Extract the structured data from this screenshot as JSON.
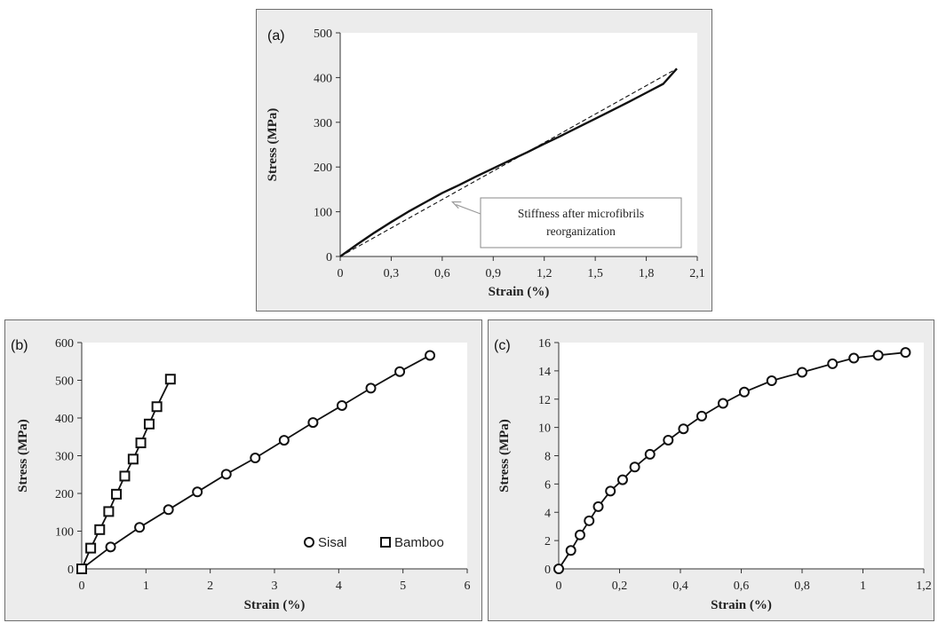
{
  "chart_data": [
    {
      "id": "a",
      "type": "line",
      "panel_label": "(a)",
      "xlabel": "Strain (%)",
      "ylabel": "Stress (MPa)",
      "xlim": [
        0,
        2.1
      ],
      "ylim": [
        0,
        500
      ],
      "xticks": [
        0,
        0.3,
        0.6,
        0.9,
        1.2,
        1.5,
        1.8,
        2.1
      ],
      "xtick_labels": [
        "0",
        "0,3",
        "0,6",
        "0,9",
        "1,2",
        "1,5",
        "1,8",
        "2,1"
      ],
      "yticks": [
        0,
        100,
        200,
        300,
        400,
        500
      ],
      "ytick_labels": [
        "0",
        "100",
        "200",
        "300",
        "400",
        "500"
      ],
      "grid": false,
      "series": [
        {
          "style": "solid",
          "x": [
            0,
            0.1,
            0.2,
            0.3,
            0.4,
            0.5,
            0.6,
            0.7,
            0.8,
            0.9,
            1.0,
            1.1,
            1.2,
            1.3,
            1.4,
            1.5,
            1.6,
            1.7,
            1.8,
            1.9,
            1.98
          ],
          "y": [
            0,
            27,
            53,
            77,
            100,
            121,
            142,
            160,
            179,
            197,
            215,
            233,
            252,
            270,
            289,
            308,
            327,
            346,
            366,
            386,
            420
          ]
        },
        {
          "style": "dashed",
          "x": [
            0,
            1.98
          ],
          "y": [
            0,
            420
          ]
        }
      ],
      "annotations": [
        {
          "text_lines": [
            "Stiffness after microfibrils",
            "reorganization"
          ],
          "arrow_to": [
            0.66,
            122
          ]
        }
      ]
    },
    {
      "id": "b",
      "type": "line",
      "panel_label": "(b)",
      "xlabel": "Strain (%)",
      "ylabel": "Stress (MPa)",
      "xlim": [
        0,
        6
      ],
      "ylim": [
        0,
        600
      ],
      "xticks": [
        0,
        1,
        2,
        3,
        4,
        5,
        6
      ],
      "xtick_labels": [
        "0",
        "1",
        "2",
        "3",
        "4",
        "5",
        "6"
      ],
      "yticks": [
        0,
        100,
        200,
        300,
        400,
        500,
        600
      ],
      "ytick_labels": [
        "0",
        "100",
        "200",
        "300",
        "400",
        "500",
        "600"
      ],
      "grid": false,
      "legend_position": "bottom-right",
      "series": [
        {
          "name": "Sisal",
          "marker": "circle",
          "x": [
            0,
            0.45,
            0.9,
            1.35,
            1.8,
            2.25,
            2.7,
            3.15,
            3.6,
            4.05,
            4.5,
            4.95,
            5.42
          ],
          "y": [
            0,
            58,
            110,
            157,
            204,
            251,
            294,
            341,
            388,
            433,
            479,
            523,
            566
          ]
        },
        {
          "name": "Bamboo",
          "marker": "square",
          "x": [
            0,
            0.14,
            0.28,
            0.42,
            0.54,
            0.67,
            0.8,
            0.92,
            1.05,
            1.17,
            1.38
          ],
          "y": [
            0,
            55,
            104,
            152,
            198,
            246,
            291,
            334,
            384,
            430,
            503
          ]
        }
      ]
    },
    {
      "id": "c",
      "type": "line",
      "panel_label": "(c)",
      "xlabel": "Strain (%)",
      "ylabel": "Stress (MPa)",
      "xlim": [
        0,
        1.2
      ],
      "ylim": [
        0,
        16
      ],
      "xticks": [
        0,
        0.2,
        0.4,
        0.6,
        0.8,
        1.0,
        1.2
      ],
      "xtick_labels": [
        "0",
        "0,2",
        "0,4",
        "0,6",
        "0,8",
        "1",
        "1,2"
      ],
      "yticks": [
        0,
        2,
        4,
        6,
        8,
        10,
        12,
        14,
        16
      ],
      "ytick_labels": [
        "0",
        "2",
        "4",
        "6",
        "8",
        "10",
        "12",
        "14",
        "16"
      ],
      "grid": false,
      "series": [
        {
          "marker": "circle",
          "x": [
            0,
            0.04,
            0.07,
            0.1,
            0.13,
            0.17,
            0.21,
            0.25,
            0.3,
            0.36,
            0.41,
            0.47,
            0.54,
            0.61,
            0.7,
            0.8,
            0.9,
            0.97,
            1.05,
            1.14
          ],
          "y": [
            0,
            1.3,
            2.4,
            3.4,
            4.4,
            5.5,
            6.3,
            7.2,
            8.1,
            9.1,
            9.9,
            10.8,
            11.7,
            12.5,
            13.3,
            13.9,
            14.5,
            14.9,
            15.1,
            15.3
          ]
        }
      ]
    }
  ]
}
